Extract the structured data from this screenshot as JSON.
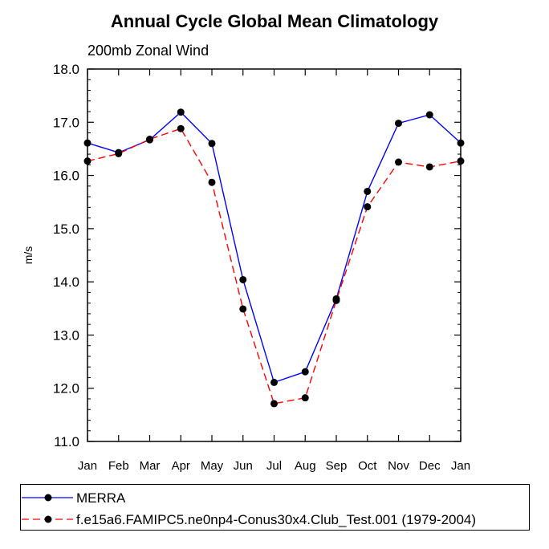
{
  "chart_data": {
    "type": "line",
    "title": "Annual Cycle Global Mean Climatology",
    "subtitle": "200mb Zonal Wind",
    "xlabel": "",
    "ylabel": "m/s",
    "categories": [
      "Jan",
      "Feb",
      "Mar",
      "Apr",
      "May",
      "Jun",
      "Jul",
      "Aug",
      "Sep",
      "Oct",
      "Nov",
      "Dec",
      "Jan"
    ],
    "ylim": [
      11.0,
      18.0
    ],
    "yticks": [
      "11.0",
      "12.0",
      "13.0",
      "14.0",
      "15.0",
      "16.0",
      "17.0",
      "18.0"
    ],
    "grid": false,
    "legend_position": "bottom",
    "series": [
      {
        "name": "MERRA",
        "color": "#0000ff",
        "dash": "solid",
        "values": [
          16.61,
          16.43,
          16.67,
          17.19,
          16.6,
          14.04,
          12.11,
          12.31,
          13.68,
          15.7,
          16.98,
          17.14,
          16.61
        ]
      },
      {
        "name": "f.e15a6.FAMIPC5.ne0np4-Conus30x4.Club_Test.001 (1979-2004)",
        "color": "#ff0000",
        "dash": "dashed",
        "values": [
          16.27,
          16.41,
          16.68,
          16.88,
          15.87,
          13.49,
          11.71,
          11.82,
          13.65,
          15.41,
          16.25,
          16.16,
          16.27
        ]
      }
    ]
  }
}
